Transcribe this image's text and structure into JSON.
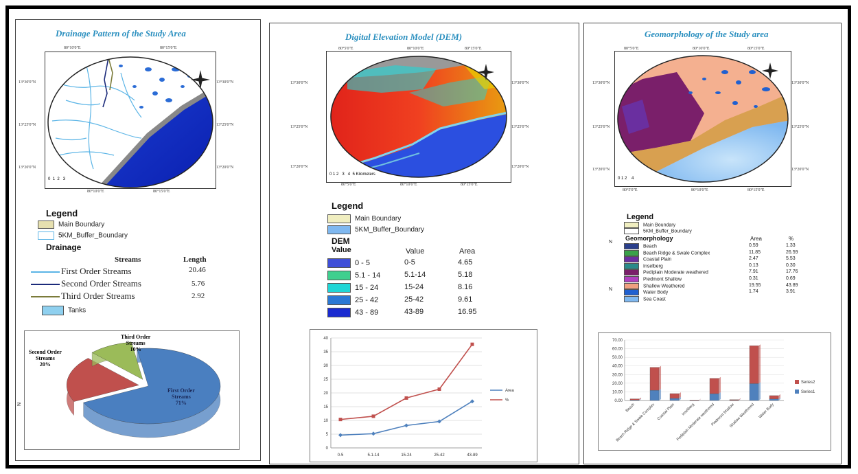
{
  "panel1": {
    "title": "Drainage Pattern of the Study Area",
    "top_coords": [
      "80°10'0\"E",
      "80°15'0\"E"
    ],
    "left_coords": [
      "13°30'0\"N",
      "13°25'0\"N",
      "13°20'0\"N"
    ],
    "bottom_coords": [
      "80°10'0\"E",
      "80°15'0\"E"
    ],
    "scale_numbers": [
      "0",
      "1",
      "2",
      "3"
    ],
    "legend": {
      "title": "Legend",
      "boundary_items": [
        "Main Boundary",
        "5KM_Buffer_Boundary"
      ],
      "drainage_label": "Drainage",
      "streams_header": "Streams",
      "length_header": "Length",
      "streams": [
        {
          "label": "First Order Streams",
          "length": "20.46",
          "color": "#5ab4e6"
        },
        {
          "label": "Second Order Streams",
          "length": "5.76",
          "color": "#1b2a7a"
        },
        {
          "label": "Third Order Streams",
          "length": "2.92",
          "color": "#7b7b3a"
        }
      ],
      "tanks_label": "Tanks"
    },
    "pie": {
      "labels": [
        {
          "l1": "Third Order",
          "l2": "Streams",
          "l3": "10%"
        },
        {
          "l1": "Second Order",
          "l2": "Streams",
          "l3": "20%"
        },
        {
          "l1": "First Order",
          "l2": "Streams",
          "l3": "71%"
        }
      ],
      "margin_mark": "N"
    }
  },
  "panel2": {
    "title": "Digital Elevation Model (DEM)",
    "top_coords": [
      "80°5'0\"E",
      "80°10'0\"E",
      "80°15'0\"E"
    ],
    "left_coords": [
      "13°30'0\"N",
      "13°25'0\"N",
      "13°20'0\"N"
    ],
    "right_coords": [
      "13°30'0\"N",
      "13°25'0\"N",
      "13°20'0\"N"
    ],
    "bottom_coords": [
      "80°5'0\"E",
      "80°10'0\"E",
      "80°15'0\"E"
    ],
    "scale_numbers": [
      "0",
      "1",
      "2",
      "3",
      "4",
      "5"
    ],
    "scale_unit": "Kilometers",
    "legend": {
      "title": "Legend",
      "boundary_items": [
        "Main Boundary",
        "5KM_Buffer_Boundary"
      ],
      "dem_label": "DEM",
      "value_label": "Value",
      "value_header": "Value",
      "area_header": "Area",
      "rows": [
        {
          "label": "0 - 5",
          "value": "0-5",
          "area": "4.65",
          "color": "#3f4fd8"
        },
        {
          "label": "5.1 - 14",
          "value": "5.1-14",
          "area": "5.18",
          "color": "#3fcf8e"
        },
        {
          "label": "15 - 24",
          "value": "15-24",
          "area": "8.16",
          "color": "#1fd6d6"
        },
        {
          "label": "25 - 42",
          "value": "25-42",
          "area": "9.61",
          "color": "#2b78d4"
        },
        {
          "label": "43 - 89",
          "value": "43-89",
          "area": "16.95",
          "color": "#1a2bd0"
        }
      ]
    }
  },
  "panel3": {
    "title": "Geomorphology of the Study area",
    "top_coords": [
      "80°5'0\"E",
      "80°10'0\"E",
      "80°15'0\"E"
    ],
    "left_coords": [
      "13°30'0\"N",
      "13°25'0\"N",
      "13°20'0\"N"
    ],
    "right_coords": [
      "13°30'0\"N",
      "13°25'0\"N",
      "13°20'0\"N"
    ],
    "bottom_coords": [
      "80°5'0\"E",
      "80°10'0\"E",
      "80°15'0\"E"
    ],
    "scale_numbers": [
      "0",
      "1",
      "2",
      "4"
    ],
    "legend": {
      "title": "Legend",
      "boundary_items": [
        "Main Boundary",
        "5KM_Buffer_Boundary"
      ],
      "geo_label": "Geomorphology",
      "area_header": "Area",
      "pct_header": "%",
      "side_marks": [
        "N",
        "N"
      ],
      "rows": [
        {
          "label": "Beach",
          "area": "0.59",
          "pct": "1.33",
          "color": "#2a3f8c"
        },
        {
          "label": "Beach Ridge & Swale Complex",
          "area": "11.85",
          "pct": "26.59",
          "color": "#3aa14a"
        },
        {
          "label": "Coastal Plain",
          "area": "2.47",
          "pct": "5.53",
          "color": "#6a2fa0"
        },
        {
          "label": "Inselberg",
          "area": "0.13",
          "pct": "0.30",
          "color": "#2a8a8a"
        },
        {
          "label": "Pediplain Moderate weathered",
          "area": "7.91",
          "pct": "17.76",
          "color": "#7a1f6a"
        },
        {
          "label": "Piedmont Shallow",
          "area": "0.31",
          "pct": "0.69",
          "color": "#b040c0"
        },
        {
          "label": "Shallow Weathered",
          "area": "19.55",
          "pct": "43.89",
          "color": "#f0a080"
        },
        {
          "label": "Water Body",
          "area": "1.74",
          "pct": "3.91",
          "color": "#2060d0"
        },
        {
          "label": "Sea Coast",
          "area": "",
          "pct": "",
          "color": "#7fb8f0"
        }
      ]
    }
  },
  "chart_data": [
    {
      "type": "pie",
      "title": "",
      "categories": [
        "First Order Streams",
        "Second Order Streams",
        "Third Order Streams"
      ],
      "values": [
        71,
        20,
        10
      ],
      "colors": [
        "#4a7fc0",
        "#c0504d",
        "#9bbb59"
      ]
    },
    {
      "type": "line",
      "title": "",
      "categories": [
        "0-5",
        "5.1-14",
        "15-24",
        "25-42",
        "43-89"
      ],
      "series": [
        {
          "name": "Area",
          "values": [
            4.65,
            5.18,
            8.16,
            9.61,
            16.95
          ],
          "color": "#4f81bd"
        },
        {
          "name": "%",
          "values": [
            10.34,
            11.52,
            18.15,
            21.37,
            37.7
          ],
          "color": "#c0504d"
        }
      ],
      "ylim": [
        0,
        40
      ],
      "yticks": [
        "0",
        "5",
        "10",
        "15",
        "20",
        "25",
        "30",
        "35",
        "40"
      ],
      "legend": "right",
      "grid": true
    },
    {
      "type": "bar",
      "title": "",
      "stacked": true,
      "categories": [
        "Beach",
        "Beach Ridge & Swale Complex",
        "Coastal Plain",
        "Inselberg",
        "Pediplain Moderate weathered",
        "Piedmont Shallow",
        "Shallow Weathered",
        "Water Body"
      ],
      "series": [
        {
          "name": "Series1",
          "values": [
            0.59,
            11.85,
            2.47,
            0.13,
            7.91,
            0.31,
            19.55,
            1.74
          ],
          "color": "#4f81bd"
        },
        {
          "name": "Series2",
          "values": [
            1.33,
            26.59,
            5.53,
            0.3,
            17.76,
            0.69,
            43.89,
            3.91
          ],
          "color": "#c0504d"
        }
      ],
      "ylim": [
        0,
        70
      ],
      "yticks": [
        "0.00",
        "10.00",
        "20.00",
        "30.00",
        "40.00",
        "50.00",
        "60.00",
        "70.00"
      ],
      "legend": "right"
    }
  ]
}
